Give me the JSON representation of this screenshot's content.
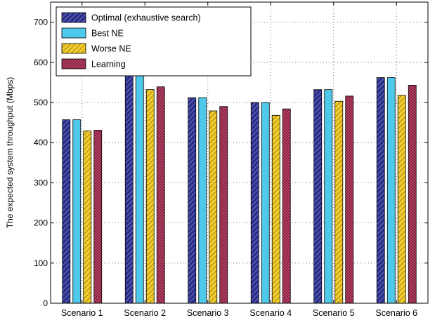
{
  "chart_data": {
    "type": "bar",
    "title": "",
    "xlabel": "",
    "ylabel": "The expected system throughput (Mbps)",
    "ylim": [
      0,
      750
    ],
    "yticks": [
      0,
      100,
      200,
      300,
      400,
      500,
      600,
      700
    ],
    "grid": true,
    "legend_position": "top-left",
    "categories": [
      "Scenario 1",
      "Scenario 2",
      "Scenario 3",
      "Scenario 4",
      "Scenario 5",
      "Scenario 6"
    ],
    "series": [
      {
        "name": "Optimal (exhaustive search)",
        "color": "#2b2f8c",
        "pattern": "hatch-light",
        "values": [
          457,
          576,
          512,
          500,
          532,
          562
        ]
      },
      {
        "name": "Best NE",
        "color": "#4fc9ea",
        "pattern": "solid",
        "values": [
          457,
          576,
          512,
          500,
          532,
          562
        ]
      },
      {
        "name": "Worse NE",
        "color": "#f2cc2b",
        "pattern": "hatch-dark",
        "values": [
          429,
          532,
          479,
          468,
          503,
          518
        ]
      },
      {
        "name": "Learning",
        "color": "#8c1b3d",
        "pattern": "checker",
        "values": [
          431,
          539,
          490,
          484,
          516,
          543
        ]
      }
    ]
  }
}
